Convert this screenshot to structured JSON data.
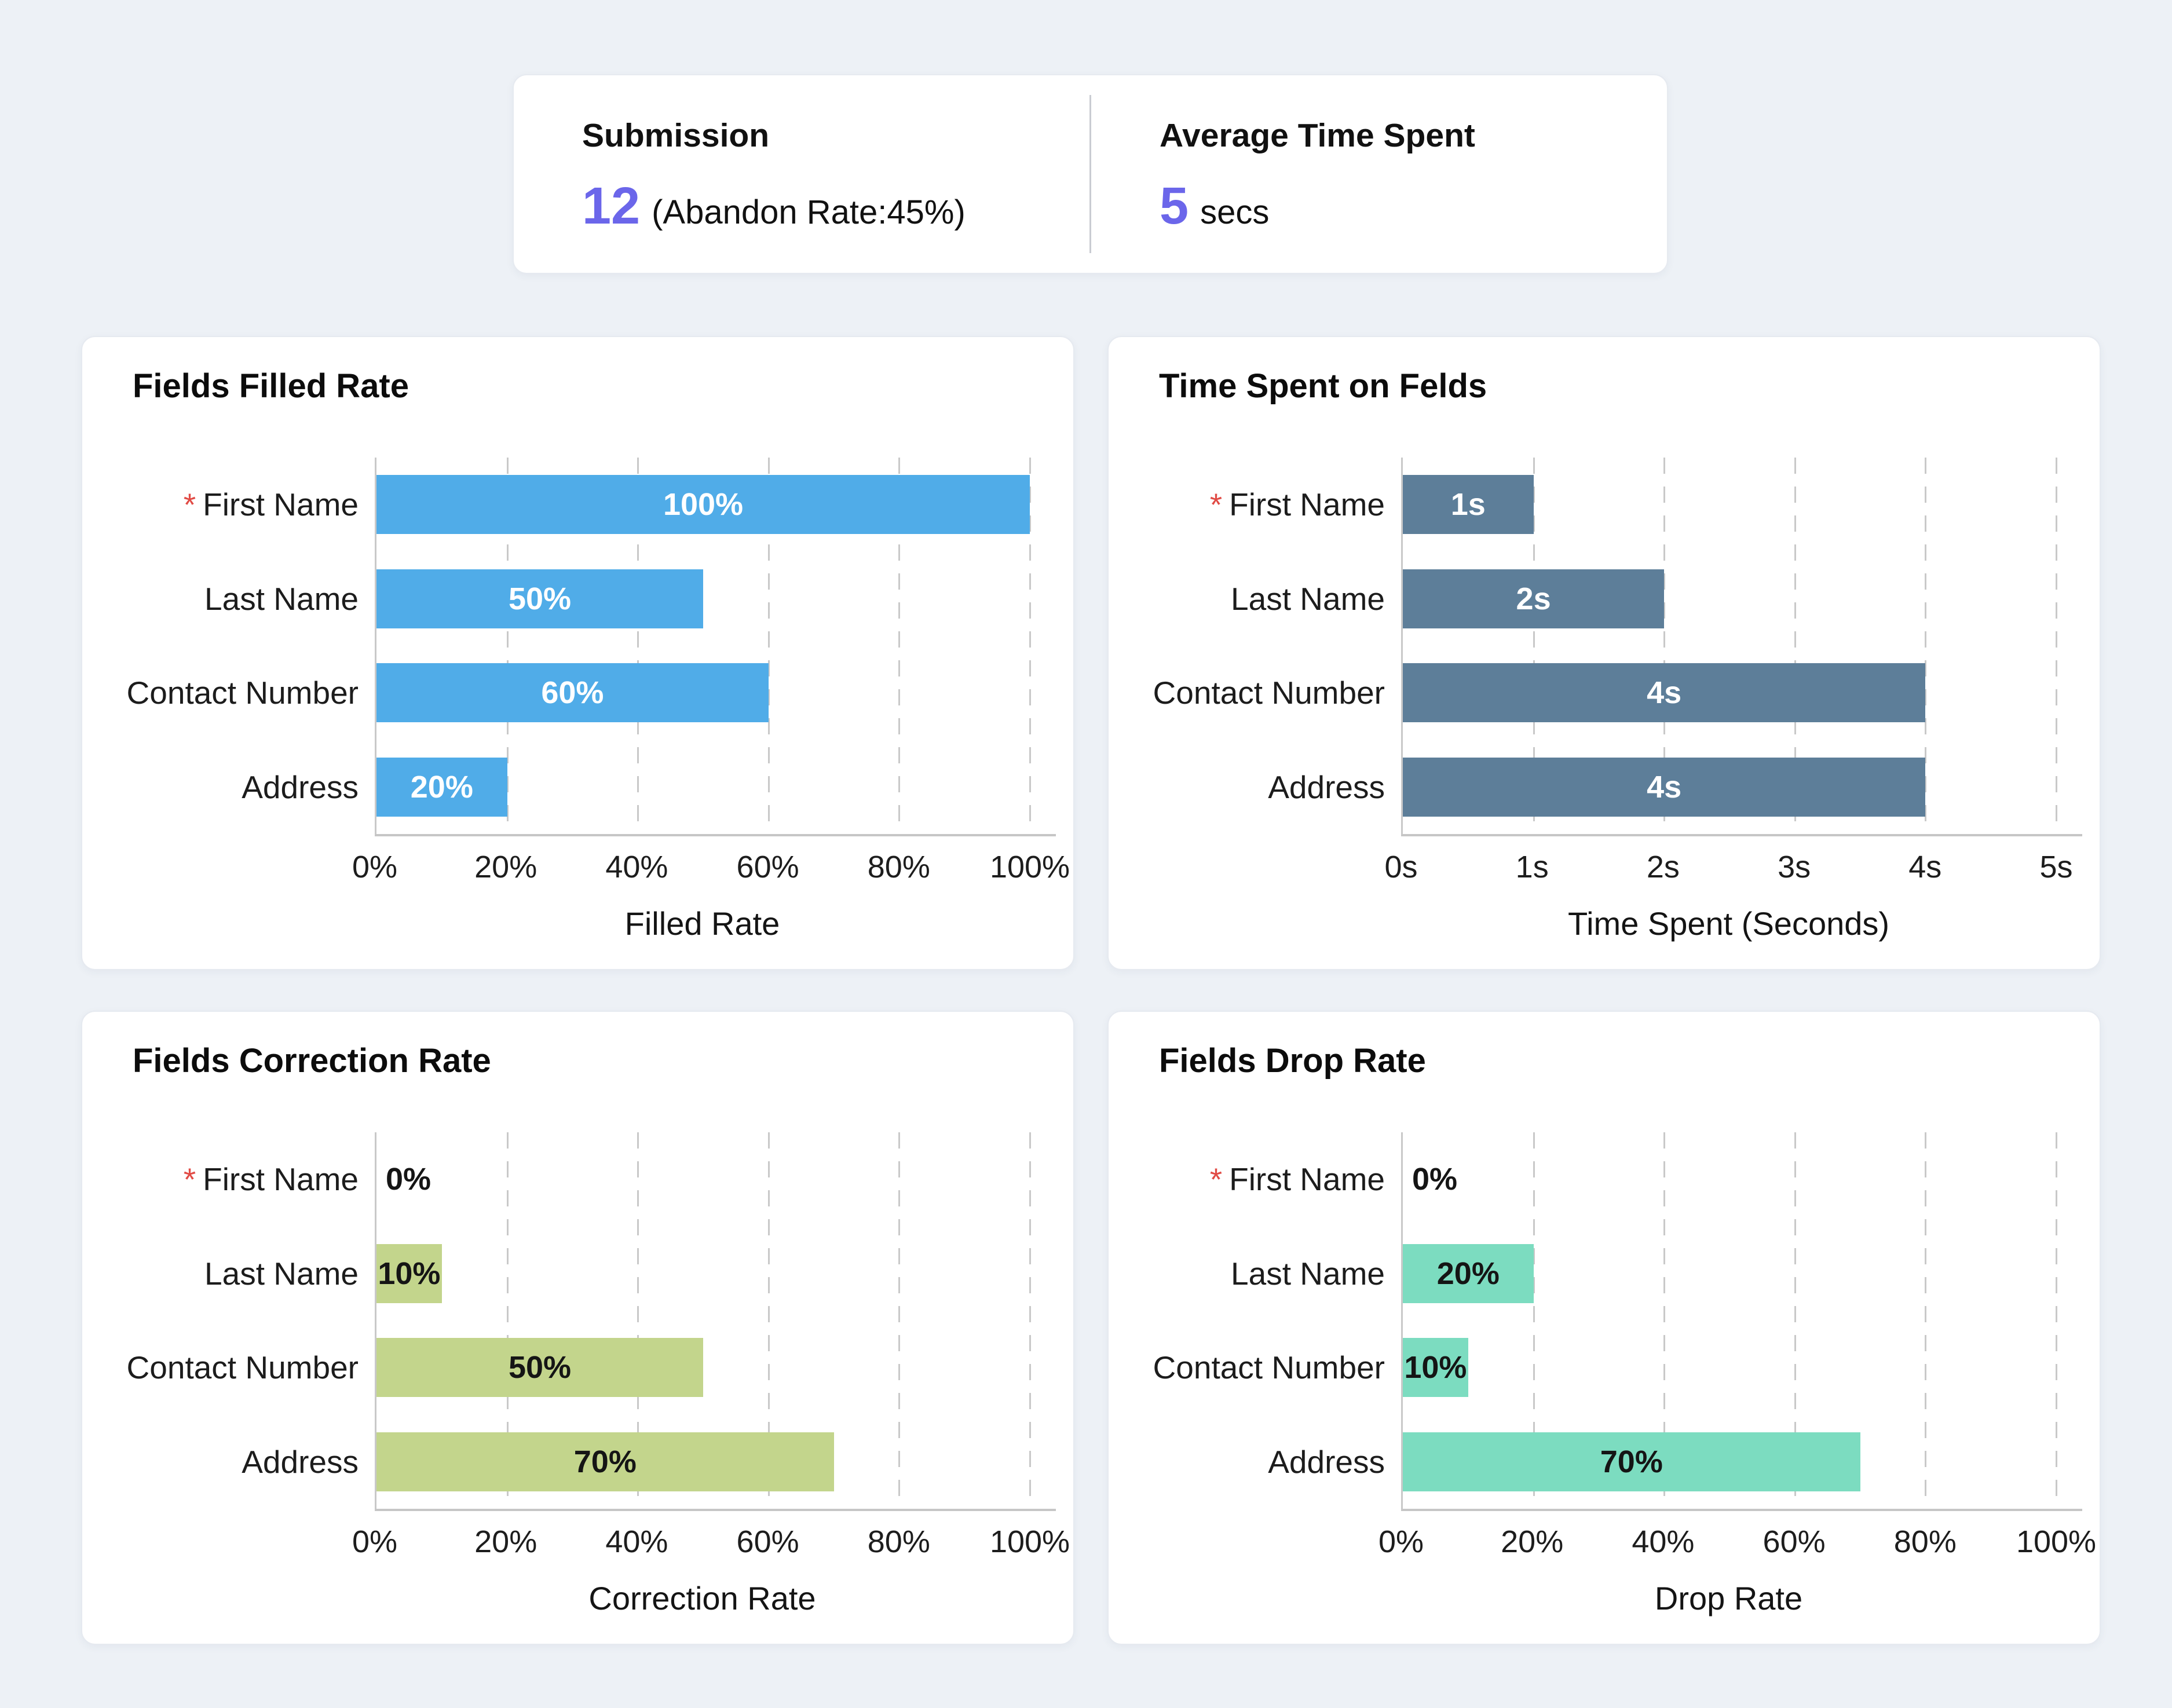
{
  "summary_card": {
    "left": {
      "label": "Submission",
      "value": "12",
      "suffix": "(Abandon Rate:45%)"
    },
    "right": {
      "label": "Average Time Spent",
      "value": "5",
      "suffix": "secs"
    }
  },
  "colors": {
    "accent_purple": "#6b66ea",
    "required_red": "#e14b45",
    "background": "#edf1f6",
    "card_background": "#ffffff"
  },
  "chart_data": [
    {
      "type": "bar",
      "orientation": "horizontal",
      "title": "Fields Filled Rate",
      "categories": [
        "First Name",
        "Last Name",
        "Contact Number",
        "Address"
      ],
      "required_flags": [
        true,
        false,
        false,
        false
      ],
      "values": [
        100,
        50,
        60,
        20
      ],
      "value_labels": [
        "100%",
        "50%",
        "60%",
        "20%"
      ],
      "xlabel": "Filled Rate",
      "xlim": [
        0,
        100
      ],
      "xticks": [
        "0%",
        "20%",
        "40%",
        "60%",
        "80%",
        "100%"
      ],
      "grid": "vertical-dashed",
      "legend": "none",
      "bar_color": "#50ace8",
      "value_label_color": "#ffffff"
    },
    {
      "type": "bar",
      "orientation": "horizontal",
      "title": "Time Spent on Felds",
      "categories": [
        "First Name",
        "Last Name",
        "Contact Number",
        "Address"
      ],
      "required_flags": [
        true,
        false,
        false,
        false
      ],
      "values": [
        1,
        2,
        4,
        4
      ],
      "value_labels": [
        "1s",
        "2s",
        "4s",
        "4s"
      ],
      "xlabel": "Time Spent (Seconds)",
      "xlim": [
        0,
        5
      ],
      "xticks": [
        "0s",
        "1s",
        "2s",
        "3s",
        "4s",
        "5s"
      ],
      "grid": "vertical-dashed",
      "legend": "none",
      "bar_color": "#5d7e99",
      "value_label_color": "#ffffff"
    },
    {
      "type": "bar",
      "orientation": "horizontal",
      "title": "Fields Correction Rate",
      "categories": [
        "First Name",
        "Last Name",
        "Contact Number",
        "Address"
      ],
      "required_flags": [
        true,
        false,
        false,
        false
      ],
      "values": [
        0,
        10,
        50,
        70
      ],
      "value_labels": [
        "0%",
        "10%",
        "50%",
        "70%"
      ],
      "xlabel": "Correction Rate",
      "xlim": [
        0,
        100
      ],
      "xticks": [
        "0%",
        "20%",
        "40%",
        "60%",
        "80%",
        "100%"
      ],
      "grid": "vertical-dashed",
      "legend": "none",
      "bar_color": "#c3d58c",
      "value_label_color": "#151515"
    },
    {
      "type": "bar",
      "orientation": "horizontal",
      "title": "Fields Drop Rate",
      "categories": [
        "First Name",
        "Last Name",
        "Contact Number",
        "Address"
      ],
      "required_flags": [
        true,
        false,
        false,
        false
      ],
      "values": [
        0,
        20,
        10,
        70
      ],
      "value_labels": [
        "0%",
        "20%",
        "10%",
        "70%"
      ],
      "xlabel": "Drop Rate",
      "xlim": [
        0,
        100
      ],
      "xticks": [
        "0%",
        "20%",
        "40%",
        "60%",
        "80%",
        "100%"
      ],
      "grid": "vertical-dashed",
      "legend": "none",
      "bar_color": "#7cdcc0",
      "value_label_color": "#151515"
    }
  ]
}
